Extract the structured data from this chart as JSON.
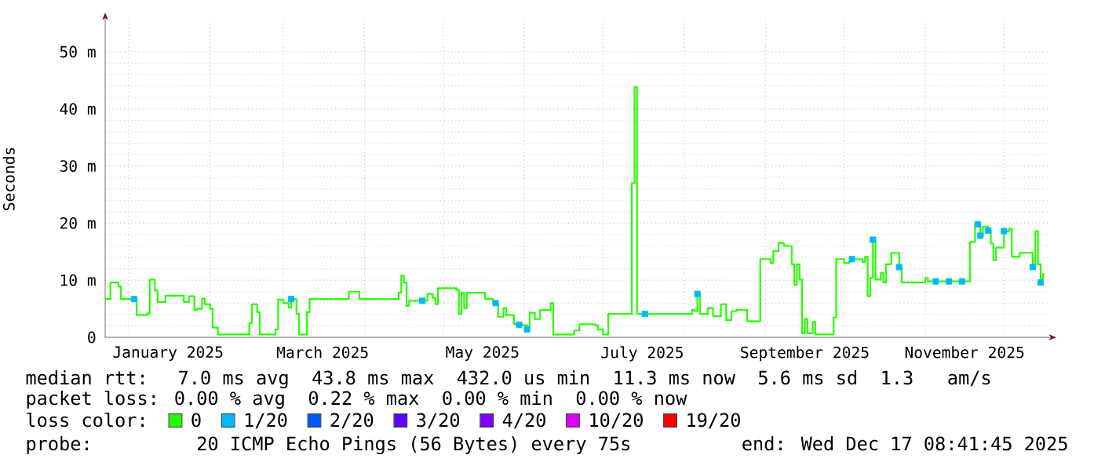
{
  "chart_data": {
    "type": "step",
    "ylabel": "Seconds",
    "xlim": [
      "2024-12-23",
      "2025-12-18"
    ],
    "xticks": [
      {
        "value": "2025-01-01",
        "label": null
      },
      {
        "value": "2025-02-01",
        "label": null
      },
      {
        "value": "2025-03-01",
        "label": null
      },
      {
        "value": "2025-04-01",
        "label": null
      },
      {
        "value": "2025-05-01",
        "label": null
      },
      {
        "value": "2025-06-01",
        "label": null
      },
      {
        "value": "2025-07-01",
        "label": null
      },
      {
        "value": "2025-08-01",
        "label": null
      },
      {
        "value": "2025-09-01",
        "label": null
      },
      {
        "value": "2025-10-01",
        "label": null
      },
      {
        "value": "2025-11-01",
        "label": null
      },
      {
        "value": "2025-12-01",
        "label": null
      },
      {
        "value": "2025-01-16",
        "label": "January 2025"
      },
      {
        "value": "2025-03-16",
        "label": "March 2025"
      },
      {
        "value": "2025-05-16",
        "label": "May 2025"
      },
      {
        "value": "2025-07-16",
        "label": "July 2025"
      },
      {
        "value": "2025-09-16",
        "label": "September 2025"
      },
      {
        "value": "2025-11-16",
        "label": "November 2025"
      }
    ],
    "ylim": [
      0,
      55.5
    ],
    "yticks": [
      0,
      {
        "value": 10,
        "label": "10 m"
      },
      {
        "value": 20,
        "label": "20 m"
      },
      {
        "value": 30,
        "label": "30 m"
      },
      {
        "value": 40,
        "label": "40 m"
      },
      {
        "value": 50,
        "label": "50 m"
      }
    ],
    "grid": true,
    "legend": "bottom",
    "legend_title": "loss color:",
    "series": [
      {
        "name": "0",
        "color": "#26ff00",
        "x": [
          "2024-12-23",
          "2024-12-25",
          "2024-12-28",
          "2024-12-29",
          "2025-01-04",
          "2025-01-08",
          "2025-01-09",
          "2025-01-11",
          "2025-01-12",
          "2025-01-15",
          "2025-01-22",
          "2025-01-24",
          "2025-01-26",
          "2025-01-27",
          "2025-01-29",
          "2025-01-30",
          "2025-02-01",
          "2025-02-02",
          "2025-02-04",
          "2025-02-16",
          "2025-02-17",
          "2025-02-19",
          "2025-02-20",
          "2025-02-26",
          "2025-02-27",
          "2025-03-01",
          "2025-03-03",
          "2025-03-04",
          "2025-03-06",
          "2025-03-07",
          "2025-03-10",
          "2025-03-11",
          "2025-03-26",
          "2025-03-30",
          "2025-04-14",
          "2025-04-15",
          "2025-04-16",
          "2025-04-17",
          "2025-04-18",
          "2025-04-25",
          "2025-04-27",
          "2025-04-28",
          "2025-04-29",
          "2025-05-06",
          "2025-05-07",
          "2025-05-08",
          "2025-05-09",
          "2025-05-10",
          "2025-05-17",
          "2025-05-20",
          "2025-05-22",
          "2025-05-24",
          "2025-05-25",
          "2025-05-28",
          "2025-05-31",
          "2025-06-02",
          "2025-06-03",
          "2025-06-05",
          "2025-06-07",
          "2025-06-11",
          "2025-06-12",
          "2025-06-20",
          "2025-06-22",
          "2025-06-28",
          "2025-06-29",
          "2025-07-01",
          "2025-07-03",
          "2025-07-12",
          "2025-07-13",
          "2025-07-14",
          "2025-08-04",
          "2025-08-05",
          "2025-08-06",
          "2025-08-07",
          "2025-08-10",
          "2025-08-12",
          "2025-08-15",
          "2025-08-17",
          "2025-08-19",
          "2025-08-21",
          "2025-08-25",
          "2025-08-30",
          "2025-09-03",
          "2025-09-04",
          "2025-09-06",
          "2025-09-08",
          "2025-09-11",
          "2025-09-12",
          "2025-09-13",
          "2025-09-14",
          "2025-09-15",
          "2025-09-16",
          "2025-09-17",
          "2025-09-19",
          "2025-09-20",
          "2025-09-27",
          "2025-09-28",
          "2025-10-01",
          "2025-10-03",
          "2025-10-04",
          "2025-10-08",
          "2025-10-09",
          "2025-10-10",
          "2025-10-11",
          "2025-10-12",
          "2025-10-13",
          "2025-10-15",
          "2025-10-16",
          "2025-10-17",
          "2025-10-19",
          "2025-10-22",
          "2025-10-23",
          "2025-11-01",
          "2025-11-02",
          "2025-11-18",
          "2025-11-20",
          "2025-11-22",
          "2025-11-23",
          "2025-11-25",
          "2025-11-26",
          "2025-11-27",
          "2025-11-28",
          "2025-12-01",
          "2025-12-03",
          "2025-12-04",
          "2025-12-07",
          "2025-12-12",
          "2025-12-13",
          "2025-12-14",
          "2025-12-15",
          "2025-12-16"
        ],
        "values": [
          6.7,
          9.6,
          8.9,
          6.7,
          3.9,
          4.2,
          10.1,
          8.2,
          6.2,
          7.3,
          6.2,
          7.2,
          4.8,
          5.0,
          6.8,
          5.8,
          5.0,
          1.7,
          0.5,
          2.5,
          5.8,
          4.4,
          0.5,
          1.4,
          6.6,
          6.0,
          5.2,
          6.7,
          4.1,
          0.5,
          4.4,
          6.7,
          8.0,
          6.7,
          7.8,
          10.8,
          9.6,
          5.5,
          6.4,
          7.6,
          6.9,
          5.8,
          8.6,
          8.3,
          4.1,
          7.8,
          5.1,
          7.8,
          6.7,
          6.0,
          3.6,
          5.1,
          3.9,
          2.3,
          2.1,
          1.4,
          4.3,
          3.2,
          4.8,
          6.0,
          0.5,
          1.2,
          2.3,
          2.1,
          1.4,
          0.5,
          4.1,
          27.0,
          43.8,
          4.1,
          4.8,
          4.6,
          7.6,
          4.1,
          5.1,
          3.7,
          5.8,
          3.0,
          4.6,
          4.8,
          2.8,
          13.7,
          13.0,
          15.1,
          16.5,
          16.0,
          12.8,
          9.2,
          12.8,
          10.1,
          0.7,
          3.2,
          0.7,
          2.7,
          0.5,
          3.5,
          13.7,
          13.0,
          13.3,
          13.7,
          13.2,
          14.1,
          7.2,
          10.4,
          17.1,
          10.1,
          11.3,
          9.6,
          12.8,
          14.8,
          12.3,
          9.6,
          10.4,
          9.8,
          16.7,
          19.8,
          17.8,
          19.4,
          18.7,
          16.4,
          13.5,
          15.7,
          18.6,
          19.0,
          14.1,
          14.8,
          12.3,
          18.6,
          12.8,
          10.2,
          11.3
        ]
      },
      {
        "name": "1/20",
        "color": "#00b8ff",
        "type": "scatter",
        "marker": "square",
        "x": [
          "2025-01-03",
          "2025-03-04",
          "2025-04-23",
          "2025-05-21",
          "2025-05-30",
          "2025-06-02",
          "2025-07-17",
          "2025-08-06",
          "2025-10-04",
          "2025-10-12",
          "2025-10-22",
          "2025-11-05",
          "2025-11-10",
          "2025-11-15",
          "2025-11-21",
          "2025-11-22",
          "2025-11-25",
          "2025-12-01",
          "2025-12-12",
          "2025-12-15"
        ],
        "values": [
          6.7,
          6.7,
          6.4,
          6.0,
          2.2,
          1.4,
          4.1,
          7.6,
          13.7,
          17.1,
          12.3,
          9.8,
          9.8,
          9.8,
          19.8,
          17.8,
          18.7,
          18.6,
          12.3,
          9.6
        ]
      },
      {
        "name": "2/20",
        "color": "#0059ff"
      },
      {
        "name": "3/20",
        "color": "#5e00ff"
      },
      {
        "name": "4/20",
        "color": "#7e00ff"
      },
      {
        "name": "10/20",
        "color": "#dd00ff"
      },
      {
        "name": "19/20",
        "color": "#ff0000"
      }
    ],
    "annotations": [
      "median rtt:  7.0 ms avg  43.8 ms max  432.0 us min  11.3 ms now  5.6 ms sd  1.3   am/s",
      "packet loss: 0.00 % avg  0.22 % max  0.00 % min  0.00 % now",
      "probe:       20 ICMP Echo Pings (56 Bytes) every 75s",
      "end: Wed Dec 17 08:41:45 2025"
    ]
  }
}
